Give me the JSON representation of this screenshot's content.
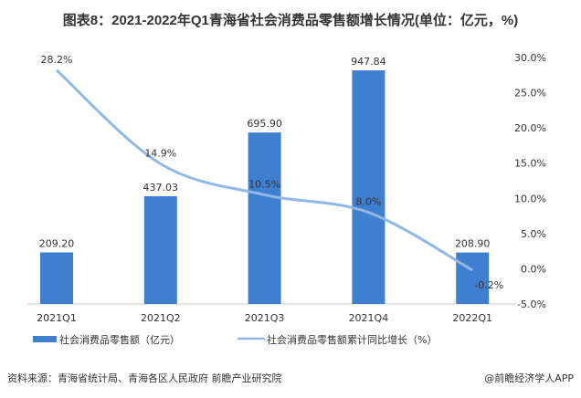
{
  "chart_data": {
    "type": "bar+line",
    "title": "图表8：2021-2022年Q1青海省社会消费品零售额增长情况(单位：亿元，%)",
    "categories": [
      "2021Q1",
      "2021Q2",
      "2021Q3",
      "2021Q4",
      "2022Q1"
    ],
    "series": [
      {
        "name": "社会消费品零售额（亿元）",
        "type": "bar",
        "axis": "left",
        "values": [
          209.2,
          437.03,
          695.9,
          947.84,
          208.9
        ],
        "labels": [
          "209.20",
          "437.03",
          "695.90",
          "947.84",
          "208.90"
        ],
        "color": "#3f7fd0"
      },
      {
        "name": "社会消费品零售额累计同比增长（%）",
        "type": "line",
        "axis": "right",
        "values": [
          28.2,
          14.9,
          10.5,
          8.0,
          -0.2
        ],
        "labels": [
          "28.2%",
          "14.9%",
          "10.5%",
          "8.0%",
          "-0.2%"
        ],
        "color": "#8fb8e6"
      }
    ],
    "y_left": {
      "range": [
        0,
        1000
      ],
      "visible": false
    },
    "y_right": {
      "range": [
        -5,
        30
      ],
      "ticks": [
        "30.0%",
        "25.0%",
        "20.0%",
        "15.0%",
        "10.0%",
        "5.0%",
        "0.0%",
        "-5.0%"
      ],
      "tick_values": [
        30,
        25,
        20,
        15,
        10,
        5,
        0,
        -5
      ]
    },
    "legend_position": "bottom",
    "grid": false
  },
  "source": "资料来源：青海省统计局、青海各区人民政府 前瞻产业研究院",
  "credit": "@前瞻经济学人APP"
}
